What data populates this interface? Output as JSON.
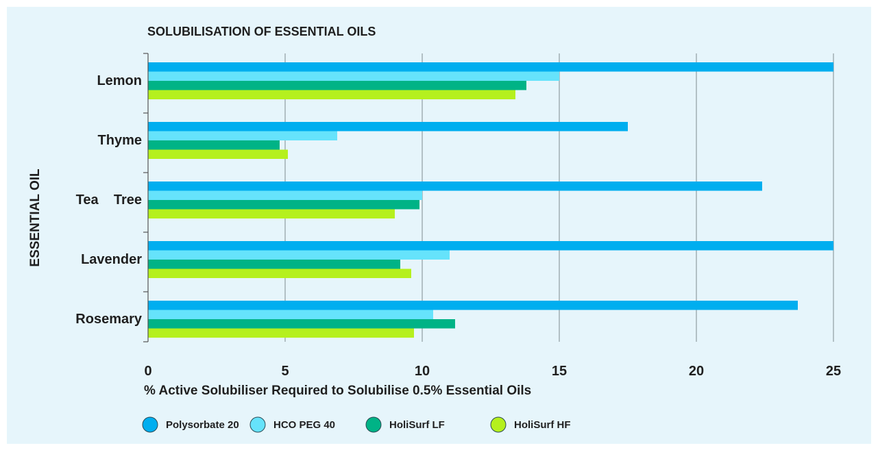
{
  "chart_data": {
    "type": "bar",
    "orientation": "horizontal",
    "title": "SOLUBILISATION OF ESSENTIAL OILS",
    "xlabel": "% Active Solubiliser Required to Solubilise 0.5% Essential Oils",
    "ylabel": "ESSENTIAL OIL",
    "categories": [
      "Lemon",
      "Thyme",
      "Tea    Tree",
      "Lavender",
      "Rosemary"
    ],
    "xlim": [
      0,
      25
    ],
    "xticks": [
      0,
      5,
      10,
      15,
      20,
      25
    ],
    "grid": true,
    "legend_position": "bottom",
    "series": [
      {
        "name": "Polysorbate 20",
        "color": "#00aeef",
        "values": [
          25,
          17.5,
          22.4,
          25,
          23.7
        ]
      },
      {
        "name": "HCO PEG 40",
        "color": "#66e3fb",
        "values": [
          15,
          6.9,
          10,
          11,
          10.4
        ]
      },
      {
        "name": "HoliSurf LF",
        "color": "#00b386",
        "values": [
          13.8,
          4.8,
          9.9,
          9.2,
          11.2
        ]
      },
      {
        "name": "HoliSurf HF",
        "color": "#b5f01e",
        "values": [
          13.4,
          5.1,
          9,
          9.6,
          9.7
        ]
      }
    ]
  }
}
